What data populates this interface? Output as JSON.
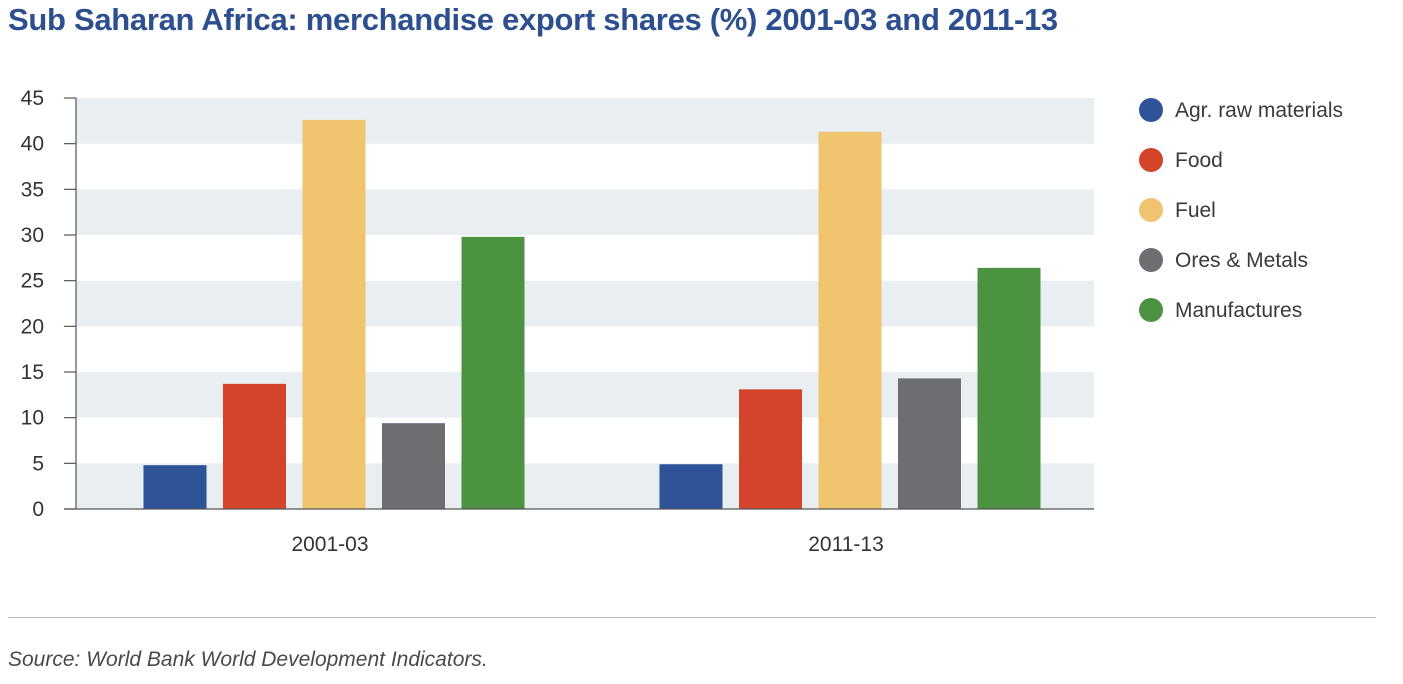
{
  "chart_data": {
    "type": "bar",
    "title": "Sub Saharan Africa: merchandise export shares (%) 2001-03 and 2011-13",
    "categories": [
      "2001-03",
      "2011-13"
    ],
    "series": [
      {
        "name": "Agr. raw materials",
        "color": "#2e5398",
        "values": [
          4.8,
          4.9
        ]
      },
      {
        "name": "Food",
        "color": "#d4442a",
        "values": [
          13.7,
          13.1
        ]
      },
      {
        "name": "Fuel",
        "color": "#f0c36e",
        "values": [
          42.6,
          41.3
        ]
      },
      {
        "name": "Ores & Metals",
        "color": "#6e6e72",
        "values": [
          9.4,
          14.3
        ]
      },
      {
        "name": "Manufactures",
        "color": "#4b9241",
        "values": [
          29.8,
          26.4
        ]
      }
    ],
    "ylim": [
      0,
      45
    ],
    "yticks": [
      "0",
      "5",
      "10",
      "15",
      "20",
      "25",
      "30",
      "35",
      "40",
      "45"
    ],
    "grid": "alternating horizontal bands",
    "band_color": "#e9eef2",
    "legend_position": "right"
  },
  "source": "Source: World Bank World Development Indicators."
}
